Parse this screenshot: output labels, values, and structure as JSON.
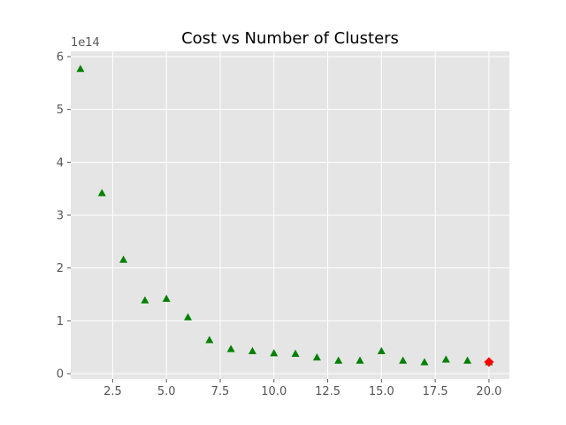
{
  "chart_data": {
    "type": "scatter",
    "title": "Cost vs Number of Clusters",
    "xlabel": "",
    "ylabel": "",
    "y_offset_label": "1e14",
    "y_scale_factor": 100000000000000.0,
    "xlim": [
      0.55,
      20.95
    ],
    "ylim": [
      -10000000000000.0,
      610000000000000.0
    ],
    "x_ticks": [
      2.5,
      5.0,
      7.5,
      10.0,
      12.5,
      15.0,
      17.5,
      20.0
    ],
    "x_tick_labels": [
      "2.5",
      "5.0",
      "7.5",
      "10.0",
      "12.5",
      "15.0",
      "17.5",
      "20.0"
    ],
    "y_ticks": [
      0,
      100000000000000.0,
      200000000000000.0,
      300000000000000.0,
      400000000000000.0,
      500000000000000.0,
      600000000000000.0
    ],
    "y_tick_labels": [
      "0",
      "1",
      "2",
      "3",
      "4",
      "5",
      "6"
    ],
    "grid": true,
    "series": [
      {
        "marker": "triangle",
        "color": "#008000",
        "x": [
          1,
          2,
          3,
          4,
          5,
          6,
          7,
          8,
          9,
          10,
          11,
          12,
          13,
          14,
          15,
          16,
          17,
          18,
          19,
          20
        ],
        "y": [
          577000000000000.0,
          342000000000000.0,
          216000000000000.0,
          139000000000000.0,
          142000000000000.0,
          107000000000000.0,
          64000000000000.0,
          47000000000000.0,
          43000000000000.0,
          39000000000000.0,
          38000000000000.0,
          31000000000000.0,
          25000000000000.0,
          25000000000000.0,
          43000000000000.0,
          25000000000000.0,
          22000000000000.0,
          27000000000000.0,
          25000000000000.0,
          22000000000000.0
        ]
      },
      {
        "marker": "diamond",
        "color": "#ff0000",
        "x": [
          20
        ],
        "y": [
          22000000000000.0
        ]
      }
    ]
  },
  "style": {
    "plot_background": "#e5e5e5",
    "grid_color": "#ffffff",
    "text_color": "#555555",
    "title_color": "#000000"
  }
}
